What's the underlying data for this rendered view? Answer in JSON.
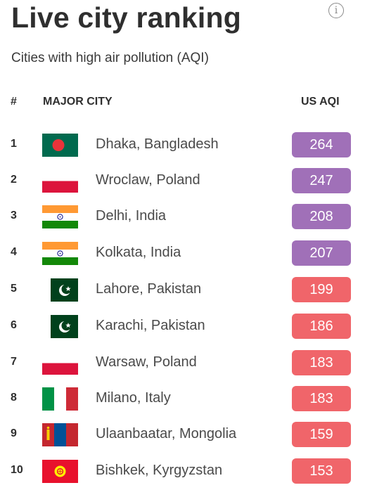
{
  "title": "Live city ranking",
  "subtitle": "Cities with high air pollution (AQI)",
  "info_icon": "info-icon",
  "table": {
    "headers": {
      "rank": "#",
      "city": "MAJOR CITY",
      "aqi": "US AQI"
    },
    "colors": {
      "very_unhealthy": "#a070b8",
      "unhealthy": "#f0656a"
    },
    "rows": [
      {
        "rank": "1",
        "city": "Dhaka, Bangladesh",
        "aqi": "264",
        "flag": "bangladesh-flag-icon",
        "level": "very_unhealthy"
      },
      {
        "rank": "2",
        "city": "Wroclaw, Poland",
        "aqi": "247",
        "flag": "poland-flag-icon",
        "level": "very_unhealthy"
      },
      {
        "rank": "3",
        "city": "Delhi, India",
        "aqi": "208",
        "flag": "india-flag-icon",
        "level": "very_unhealthy"
      },
      {
        "rank": "4",
        "city": "Kolkata, India",
        "aqi": "207",
        "flag": "india-flag-icon",
        "level": "very_unhealthy"
      },
      {
        "rank": "5",
        "city": "Lahore, Pakistan",
        "aqi": "199",
        "flag": "pakistan-flag-icon",
        "level": "unhealthy"
      },
      {
        "rank": "6",
        "city": "Karachi, Pakistan",
        "aqi": "186",
        "flag": "pakistan-flag-icon",
        "level": "unhealthy"
      },
      {
        "rank": "7",
        "city": "Warsaw, Poland",
        "aqi": "183",
        "flag": "poland-flag-icon",
        "level": "unhealthy"
      },
      {
        "rank": "8",
        "city": "Milano, Italy",
        "aqi": "183",
        "flag": "italy-flag-icon",
        "level": "unhealthy"
      },
      {
        "rank": "9",
        "city": "Ulaanbaatar, Mongolia",
        "aqi": "159",
        "flag": "mongolia-flag-icon",
        "level": "unhealthy"
      },
      {
        "rank": "10",
        "city": "Bishkek, Kyrgyzstan",
        "aqi": "153",
        "flag": "kyrgyzstan-flag-icon",
        "level": "unhealthy"
      }
    ]
  }
}
